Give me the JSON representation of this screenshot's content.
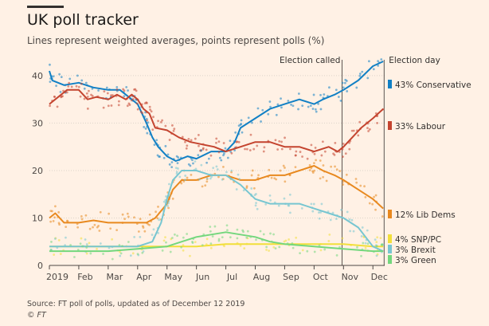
{
  "header": {
    "title": "UK poll tracker",
    "subtitle": "Lines represent weighted averages, points represent polls (%)"
  },
  "footer": {
    "source": "Source: FT poll of polls, updated as of December 12 2019",
    "credit": "© FT"
  },
  "chart_data": {
    "type": "line",
    "title": "UK poll tracker",
    "subtitle": "Lines represent weighted averages, points represent polls (%)",
    "x_unit": "month_index_2019",
    "xlim": [
      0,
      11.4
    ],
    "ylim": [
      0,
      42
    ],
    "yticks": [
      0,
      10,
      20,
      30,
      40
    ],
    "xticks": [
      {
        "label": "2019",
        "x": 0
      },
      {
        "label": "Feb",
        "x": 1
      },
      {
        "label": "Mar",
        "x": 2
      },
      {
        "label": "Apr",
        "x": 3
      },
      {
        "label": "May",
        "x": 4
      },
      {
        "label": "Jun",
        "x": 5
      },
      {
        "label": "Jul",
        "x": 6
      },
      {
        "label": "Aug",
        "x": 7
      },
      {
        "label": "Sep",
        "x": 8
      },
      {
        "label": "Oct",
        "x": 9
      },
      {
        "label": "Nov",
        "x": 10
      },
      {
        "label": "Dec",
        "x": 11
      }
    ],
    "grid": true,
    "annotations": [
      {
        "label": "Election called",
        "x": 9.95
      },
      {
        "label": "Election day",
        "x": 11.38
      }
    ],
    "series": [
      {
        "name": "Conservative",
        "legend_label": "43% Conservative",
        "color": "#1180c5",
        "points": [
          [
            0,
            41
          ],
          [
            0.1,
            39
          ],
          [
            0.5,
            38
          ],
          [
            1,
            38.5
          ],
          [
            1.5,
            37.5
          ],
          [
            2,
            37
          ],
          [
            2.4,
            37
          ],
          [
            2.8,
            35
          ],
          [
            3,
            34
          ],
          [
            3.3,
            30
          ],
          [
            3.5,
            27
          ],
          [
            3.7,
            25
          ],
          [
            4,
            23
          ],
          [
            4.3,
            22
          ],
          [
            4.7,
            23
          ],
          [
            5,
            22.5
          ],
          [
            5.5,
            24
          ],
          [
            6,
            24
          ],
          [
            6.3,
            26
          ],
          [
            6.5,
            29
          ],
          [
            7,
            31
          ],
          [
            7.5,
            33
          ],
          [
            8,
            34
          ],
          [
            8.5,
            35
          ],
          [
            9,
            34
          ],
          [
            9.3,
            35
          ],
          [
            9.7,
            36
          ],
          [
            10,
            37
          ],
          [
            10.5,
            39
          ],
          [
            11,
            42
          ],
          [
            11.35,
            43
          ]
        ]
      },
      {
        "name": "Labour",
        "legend_label": "33% Labour",
        "color": "#c4442f",
        "points": [
          [
            0,
            34
          ],
          [
            0.3,
            35.5
          ],
          [
            0.6,
            37
          ],
          [
            1,
            37
          ],
          [
            1.3,
            35
          ],
          [
            1.6,
            35.5
          ],
          [
            2,
            35
          ],
          [
            2.3,
            36
          ],
          [
            2.6,
            35
          ],
          [
            2.8,
            36
          ],
          [
            3,
            35
          ],
          [
            3.2,
            33
          ],
          [
            3.4,
            32
          ],
          [
            3.6,
            29
          ],
          [
            4,
            28.5
          ],
          [
            4.4,
            27
          ],
          [
            4.8,
            26
          ],
          [
            5.2,
            25.5
          ],
          [
            5.6,
            25
          ],
          [
            6,
            24
          ],
          [
            6.5,
            25
          ],
          [
            7,
            26
          ],
          [
            7.5,
            26
          ],
          [
            8,
            25
          ],
          [
            8.5,
            25
          ],
          [
            9,
            24
          ],
          [
            9.5,
            25
          ],
          [
            9.8,
            24
          ],
          [
            10,
            25
          ],
          [
            10.3,
            27
          ],
          [
            10.6,
            29
          ],
          [
            11,
            31
          ],
          [
            11.35,
            33
          ]
        ]
      },
      {
        "name": "Lib Dems",
        "legend_label": "12% Lib Dems",
        "color": "#e8891f",
        "points": [
          [
            0,
            10
          ],
          [
            0.2,
            11
          ],
          [
            0.5,
            9
          ],
          [
            1,
            9
          ],
          [
            1.5,
            9.5
          ],
          [
            2,
            9
          ],
          [
            2.5,
            9
          ],
          [
            3,
            9
          ],
          [
            3.3,
            9
          ],
          [
            3.6,
            10
          ],
          [
            4,
            13
          ],
          [
            4.2,
            16
          ],
          [
            4.5,
            18
          ],
          [
            5,
            18
          ],
          [
            5.5,
            19
          ],
          [
            6,
            19
          ],
          [
            6.5,
            18
          ],
          [
            7,
            18
          ],
          [
            7.5,
            19
          ],
          [
            8,
            19
          ],
          [
            8.5,
            20
          ],
          [
            9,
            21
          ],
          [
            9.3,
            20
          ],
          [
            9.7,
            19
          ],
          [
            10,
            18
          ],
          [
            10.5,
            16
          ],
          [
            11,
            14
          ],
          [
            11.35,
            12
          ]
        ]
      },
      {
        "name": "SNP/PC",
        "legend_label": "4% SNP/PC",
        "color": "#f2df3a",
        "points": [
          [
            0,
            4
          ],
          [
            1,
            4
          ],
          [
            2,
            4
          ],
          [
            3,
            4
          ],
          [
            4,
            4
          ],
          [
            5,
            4
          ],
          [
            6,
            4.5
          ],
          [
            7,
            4.5
          ],
          [
            8,
            4.5
          ],
          [
            9,
            4.5
          ],
          [
            10,
            4.5
          ],
          [
            11,
            4
          ],
          [
            11.35,
            4
          ]
        ]
      },
      {
        "name": "Brexit",
        "legend_label": "3% Brexit",
        "color": "#77c6d1",
        "points": [
          [
            0,
            4
          ],
          [
            1,
            4
          ],
          [
            2,
            4
          ],
          [
            3,
            4
          ],
          [
            3.5,
            5
          ],
          [
            3.8,
            9
          ],
          [
            4,
            14
          ],
          [
            4.2,
            18
          ],
          [
            4.5,
            20
          ],
          [
            5,
            20
          ],
          [
            5.5,
            19
          ],
          [
            6,
            19
          ],
          [
            6.5,
            17
          ],
          [
            7,
            14
          ],
          [
            7.5,
            13
          ],
          [
            8,
            13
          ],
          [
            8.5,
            13
          ],
          [
            9,
            12
          ],
          [
            9.5,
            11
          ],
          [
            10,
            10
          ],
          [
            10.5,
            8
          ],
          [
            11,
            4
          ],
          [
            11.35,
            3
          ]
        ]
      },
      {
        "name": "Green",
        "legend_label": "3% Green",
        "color": "#73d77d",
        "points": [
          [
            0,
            3
          ],
          [
            1,
            3
          ],
          [
            2,
            3
          ],
          [
            3,
            3.5
          ],
          [
            4,
            4
          ],
          [
            4.5,
            5
          ],
          [
            5,
            6
          ],
          [
            5.5,
            6.5
          ],
          [
            6,
            7
          ],
          [
            6.5,
            6.5
          ],
          [
            7,
            6
          ],
          [
            7.5,
            5
          ],
          [
            8,
            4.5
          ],
          [
            9,
            4
          ],
          [
            10,
            3.5
          ],
          [
            11,
            3
          ],
          [
            11.35,
            3
          ]
        ]
      }
    ]
  }
}
